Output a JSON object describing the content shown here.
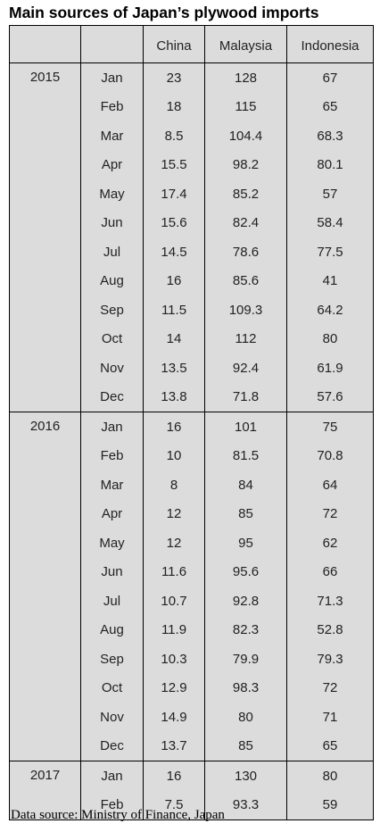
{
  "table": {
    "title": "Main sources of Japan’s plywood imports",
    "columns": [
      "China",
      "Malaysia",
      "Indonesia"
    ],
    "groups": [
      {
        "year": "2015",
        "rows": [
          {
            "month": "Jan",
            "values": [
              23,
              128,
              67
            ]
          },
          {
            "month": "Feb",
            "values": [
              18,
              115,
              65
            ]
          },
          {
            "month": "Mar",
            "values": [
              8.5,
              104.4,
              68.3
            ]
          },
          {
            "month": "Apr",
            "values": [
              15.5,
              98.2,
              80.1
            ]
          },
          {
            "month": "May",
            "values": [
              17.4,
              85.2,
              57
            ]
          },
          {
            "month": "Jun",
            "values": [
              15.6,
              82.4,
              58.4
            ]
          },
          {
            "month": "Jul",
            "values": [
              14.5,
              78.6,
              77.5
            ]
          },
          {
            "month": "Aug",
            "values": [
              16,
              85.6,
              41
            ]
          },
          {
            "month": "Sep",
            "values": [
              11.5,
              109.3,
              64.2
            ]
          },
          {
            "month": "Oct",
            "values": [
              14,
              112,
              80
            ]
          },
          {
            "month": "Nov",
            "values": [
              13.5,
              92.4,
              61.9
            ]
          },
          {
            "month": "Dec",
            "values": [
              13.8,
              71.8,
              57.6
            ]
          }
        ]
      },
      {
        "year": "2016",
        "rows": [
          {
            "month": "Jan",
            "values": [
              16,
              101,
              75
            ]
          },
          {
            "month": "Feb",
            "values": [
              10,
              81.5,
              70.8
            ]
          },
          {
            "month": "Mar",
            "values": [
              8,
              84,
              64
            ]
          },
          {
            "month": "Apr",
            "values": [
              12,
              85,
              72
            ]
          },
          {
            "month": "May",
            "values": [
              12,
              95,
              62
            ]
          },
          {
            "month": "Jun",
            "values": [
              11.6,
              95.6,
              66
            ]
          },
          {
            "month": "Jul",
            "values": [
              10.7,
              92.8,
              71.3
            ]
          },
          {
            "month": "Aug",
            "values": [
              11.9,
              82.3,
              52.8
            ]
          },
          {
            "month": "Sep",
            "values": [
              10.3,
              79.9,
              79.3
            ]
          },
          {
            "month": "Oct",
            "values": [
              12.9,
              98.3,
              72
            ]
          },
          {
            "month": "Nov",
            "values": [
              14.9,
              80,
              71
            ]
          },
          {
            "month": "Dec",
            "values": [
              13.7,
              85,
              65
            ]
          }
        ]
      },
      {
        "year": "2017",
        "rows": [
          {
            "month": "Jan",
            "values": [
              16,
              130,
              80
            ]
          },
          {
            "month": "Feb",
            "values": [
              7.5,
              93.3,
              59
            ]
          }
        ]
      }
    ],
    "source": "Data source: Ministry of Finance, Japan"
  }
}
